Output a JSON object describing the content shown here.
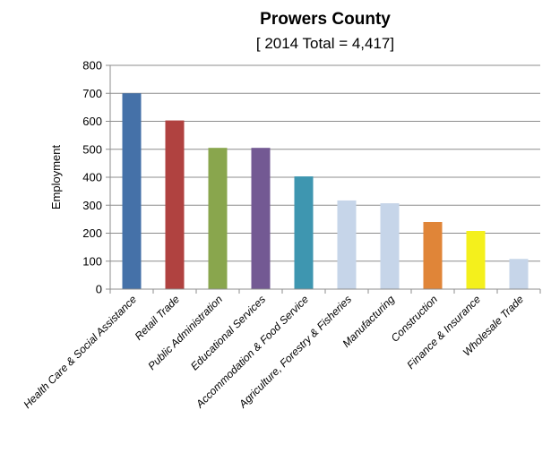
{
  "chart_data": {
    "type": "bar",
    "title": "Prowers County",
    "subtitle": "[ 2014 Total = 4,417]",
    "xlabel": "",
    "ylabel": "Employment",
    "ylim": [
      0,
      800
    ],
    "yticks": [
      0,
      100,
      200,
      300,
      400,
      500,
      600,
      700,
      800
    ],
    "grid": true,
    "legend": "none",
    "categories": [
      "Health Care & Social Assistance",
      "Retail Trade",
      "Public Administration",
      "Educational Services",
      "Accommodation & Food Service",
      "Agriculture, Forestry & Fisheries",
      "Manufacturing",
      "Construction",
      "Finance & Insurance",
      "Wholesale Trade"
    ],
    "values": [
      700,
      603,
      505,
      505,
      403,
      317,
      307,
      240,
      208,
      108
    ],
    "colors": [
      "#4571a8",
      "#b04240",
      "#89a64d",
      "#735993",
      "#3e96b0",
      "#c6d5e9",
      "#c6d5e9",
      "#e08538",
      "#f4f01c",
      "#c6d5e9"
    ]
  }
}
